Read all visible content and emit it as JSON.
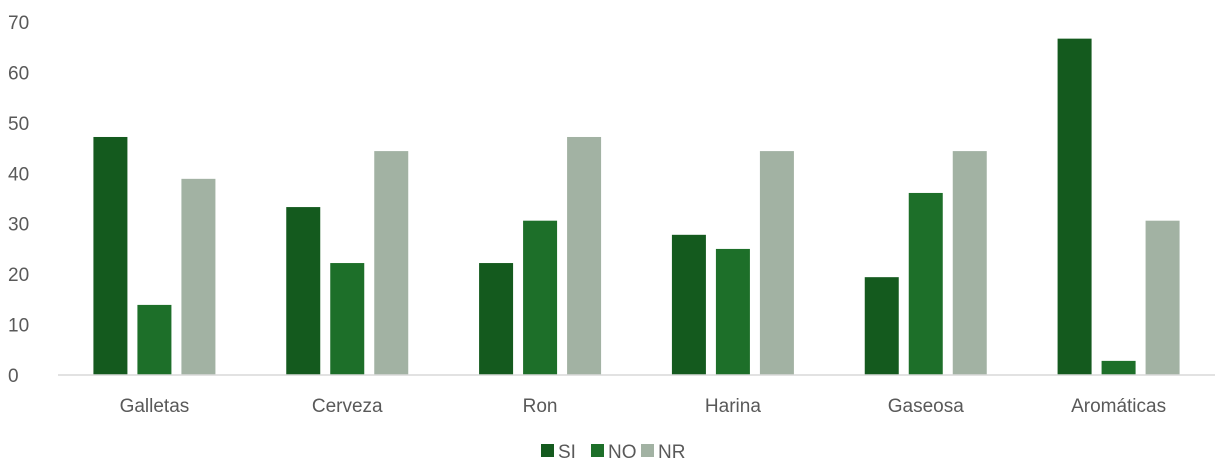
{
  "chart_data": {
    "type": "bar",
    "categories": [
      "Galletas",
      "Cerveza",
      "Ron",
      "Harina",
      "Gaseosa",
      "Aromáticas"
    ],
    "series": [
      {
        "name": "SI",
        "color": "#145a1e",
        "values": [
          47.2,
          33.3,
          22.2,
          27.8,
          19.4,
          66.7
        ]
      },
      {
        "name": "NO",
        "color": "#1d6f29",
        "values": [
          13.9,
          22.2,
          30.6,
          25.0,
          36.1,
          2.8
        ]
      },
      {
        "name": "NR",
        "color": "#a2b2a3",
        "values": [
          38.9,
          44.4,
          47.2,
          44.4,
          44.4,
          30.6
        ]
      }
    ],
    "yticks": [
      "0",
      "10",
      "20",
      "30",
      "40",
      "50",
      "60",
      "70"
    ],
    "ylim": [
      0,
      70
    ],
    "grid": false,
    "legend_position": "bottom",
    "title": "",
    "xlabel": "",
    "ylabel": ""
  }
}
